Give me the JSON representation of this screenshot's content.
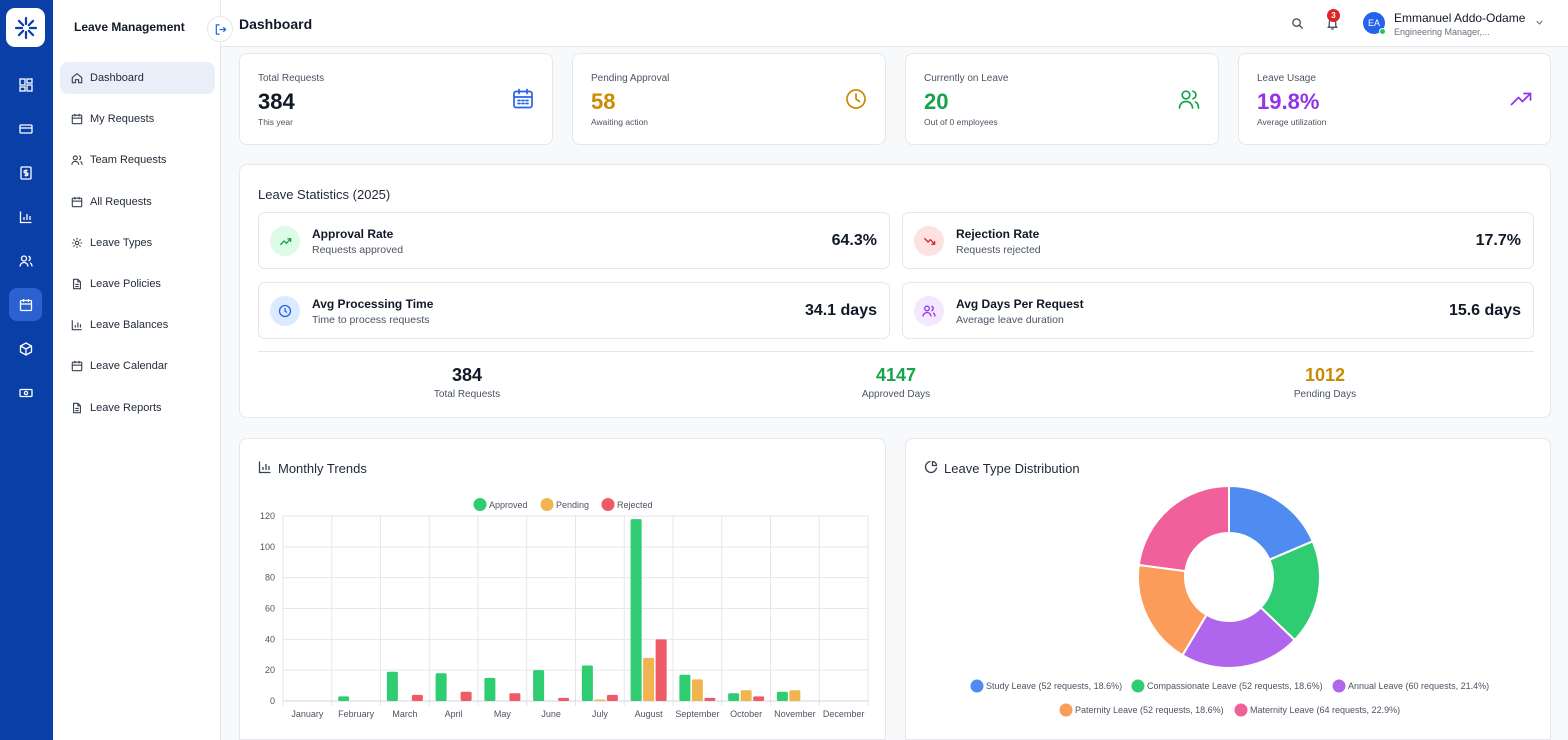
{
  "app": {
    "title": "Leave Management"
  },
  "header": {
    "page_title": "Dashboard",
    "notif_count": "3",
    "user": {
      "initials": "EA",
      "name": "Emmanuel Addo-Odame",
      "role": "Engineering Manager,..."
    }
  },
  "sidebar": {
    "items": [
      {
        "label": "Dashboard",
        "icon": "home-icon",
        "active": true
      },
      {
        "label": "My Requests",
        "icon": "calendar-icon"
      },
      {
        "label": "Team Requests",
        "icon": "users-icon"
      },
      {
        "label": "All Requests",
        "icon": "calendar-icon"
      },
      {
        "label": "Leave Types",
        "icon": "gear-icon"
      },
      {
        "label": "Leave Policies",
        "icon": "document-icon"
      },
      {
        "label": "Leave Balances",
        "icon": "bar-chart-icon"
      },
      {
        "label": "Leave Calendar",
        "icon": "calendar-icon"
      },
      {
        "label": "Leave Reports",
        "icon": "document-icon"
      }
    ]
  },
  "kpis": [
    {
      "label": "Total Requests",
      "value": "384",
      "sub": "This year",
      "color": "#111827",
      "icon": "calendar-icon",
      "icon_color": "#2563eb"
    },
    {
      "label": "Pending Approval",
      "value": "58",
      "sub": "Awaiting action",
      "color": "#ca8a04",
      "icon": "clock-icon",
      "icon_color": "#ca8a04"
    },
    {
      "label": "Currently on Leave",
      "value": "20",
      "sub": "Out of 0 employees",
      "color": "#16a34a",
      "icon": "users-icon",
      "icon_color": "#16a34a"
    },
    {
      "label": "Leave Usage",
      "value": "19.8%",
      "sub": "Average utilization",
      "color": "#9333ea",
      "icon": "trending-up-icon",
      "icon_color": "#9333ea"
    }
  ],
  "stats": {
    "title": "Leave Statistics (2025)",
    "items": [
      {
        "title": "Approval Rate",
        "sub": "Requests approved",
        "value": "64.3%"
      },
      {
        "title": "Rejection Rate",
        "sub": "Requests rejected",
        "value": "17.7%"
      },
      {
        "title": "Avg Processing Time",
        "sub": "Time to process requests",
        "value": "34.1 days"
      },
      {
        "title": "Avg Days Per Request",
        "sub": "Average leave duration",
        "value": "15.6 days"
      }
    ],
    "totals": [
      {
        "value": "384",
        "label": "Total Requests",
        "color": "#111827"
      },
      {
        "value": "4147",
        "label": "Approved Days",
        "color": "#16a34a"
      },
      {
        "value": "1012",
        "label": "Pending Days",
        "color": "#ca8a04"
      }
    ]
  },
  "trends": {
    "title": "Monthly Trends"
  },
  "distribution": {
    "title": "Leave Type Distribution"
  },
  "chart_data": [
    {
      "type": "bar",
      "title": "Monthly Trends",
      "categories": [
        "January",
        "February",
        "March",
        "April",
        "May",
        "June",
        "July",
        "August",
        "September",
        "October",
        "November",
        "December"
      ],
      "ylim": [
        0,
        120
      ],
      "yticks": [
        0,
        20,
        40,
        60,
        80,
        100,
        120
      ],
      "grid": true,
      "legend": "top-center",
      "series": [
        {
          "name": "Approved",
          "color": "#2fcc71",
          "values": [
            0,
            3,
            19,
            18,
            15,
            20,
            23,
            118,
            17,
            5,
            6,
            0
          ]
        },
        {
          "name": "Pending",
          "color": "#f0b54f",
          "values": [
            0,
            0,
            0,
            0,
            0,
            0,
            1,
            28,
            14,
            7,
            7,
            0
          ]
        },
        {
          "name": "Rejected",
          "color": "#ef5a67",
          "values": [
            0,
            0,
            4,
            6,
            5,
            2,
            4,
            40,
            2,
            3,
            0,
            0
          ]
        }
      ]
    },
    {
      "type": "pie",
      "title": "Leave Type Distribution",
      "legend": "bottom",
      "slices": [
        {
          "name": "Study Leave (52 requests, 18.6%)",
          "value": 18.6,
          "color": "#4f8bf0"
        },
        {
          "name": "Compassionate Leave (52 requests, 18.6%)",
          "value": 18.6,
          "color": "#2fcc71"
        },
        {
          "name": "Annual Leave (60 requests, 21.4%)",
          "value": 21.4,
          "color": "#b066ec"
        },
        {
          "name": "Paternity Leave (52 requests, 18.6%)",
          "value": 18.6,
          "color": "#fb9c5a"
        },
        {
          "name": "Maternity Leave (64 requests, 22.9%)",
          "value": 22.9,
          "color": "#f0609a"
        }
      ]
    }
  ]
}
